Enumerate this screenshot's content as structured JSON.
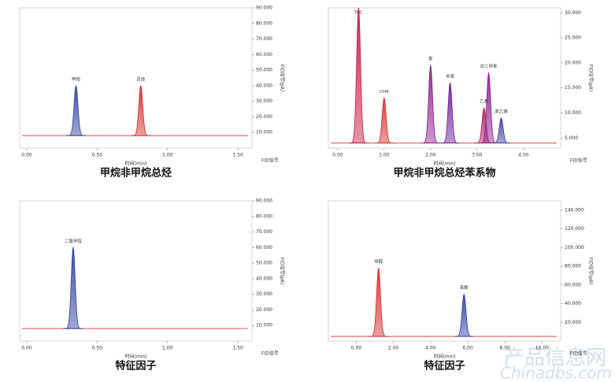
{
  "chart_data": [
    {
      "type": "chromatogram",
      "caption": "甲烷非甲烷总烃",
      "xlabel": "时间(min)",
      "ylabel": "FID信号(pA)",
      "legend": "FID信号",
      "xlim": [
        -0.05,
        1.6
      ],
      "xticks": [
        {
          "value": 0,
          "label": "0.00"
        },
        {
          "value": 0.5,
          "label": "0.50"
        },
        {
          "value": 1,
          "label": "1.00"
        },
        {
          "value": 1.5,
          "label": "1.50"
        }
      ],
      "ylim": [
        0,
        90
      ],
      "yticks": [
        {
          "value": 10,
          "label": "10.000"
        },
        {
          "value": 20,
          "label": "20.000"
        },
        {
          "value": 30,
          "label": "30.000"
        },
        {
          "value": 40,
          "label": "40.000"
        },
        {
          "value": 50,
          "label": "50.000"
        },
        {
          "value": 60,
          "label": "60.000"
        },
        {
          "value": 70,
          "label": "70.000"
        },
        {
          "value": 80,
          "label": "80.000"
        },
        {
          "value": 90,
          "label": "90.000"
        }
      ],
      "baseline": 8,
      "line_color": "#e0503c",
      "peaks": {
        "labels": [
          "甲烷",
          "总烃"
        ],
        "x": [
          0.35,
          0.81
        ],
        "values": [
          40,
          40
        ],
        "colors": [
          "#2a3d9e",
          "#d42a2a"
        ]
      }
    },
    {
      "type": "chromatogram",
      "caption": "甲烷非甲烷总烃苯系物",
      "xlabel": "时间(min)",
      "ylabel": "FID信号(pA)",
      "legend": "FID信号",
      "xlim": [
        -0.2,
        4.8
      ],
      "xticks": [
        {
          "value": 0,
          "label": "0.00"
        },
        {
          "value": 1,
          "label": "1.00"
        },
        {
          "value": 2,
          "label": "2.00"
        },
        {
          "value": 3,
          "label": "3.00"
        },
        {
          "value": 4,
          "label": "4.00"
        }
      ],
      "ylim": [
        3,
        31
      ],
      "yticks": [
        {
          "value": 5,
          "label": "5.000"
        },
        {
          "value": 10,
          "label": "10.000"
        },
        {
          "value": 15,
          "label": "15.000"
        },
        {
          "value": 20,
          "label": "20.000"
        },
        {
          "value": 25,
          "label": "25.000"
        },
        {
          "value": 30,
          "label": "30.000"
        }
      ],
      "baseline": 4,
      "line_color": "#e0503c",
      "peaks": {
        "labels": [
          "THC",
          "CH4",
          "苯",
          "甲苯",
          "乙苯",
          "对二甲苯",
          "苯乙烯"
        ],
        "x": [
          0.45,
          1.0,
          2.0,
          2.42,
          3.15,
          3.25,
          3.52
        ],
        "values": [
          31,
          13,
          19.5,
          16,
          11,
          18,
          9
        ],
        "colors": [
          "#c8143c",
          "#d42a2a",
          "#8a1a8a",
          "#6a1a9a",
          "#b0185a",
          "#8a1a8a",
          "#3a3aa0"
        ]
      }
    },
    {
      "type": "chromatogram",
      "caption": "特征因子",
      "xlabel": "时间(min)",
      "ylabel": "FID信号(pA)",
      "legend": "FID信号",
      "xlim": [
        -0.05,
        1.6
      ],
      "xticks": [
        {
          "value": 0,
          "label": "0.00"
        },
        {
          "value": 0.5,
          "label": "0.50"
        },
        {
          "value": 1,
          "label": "1.00"
        },
        {
          "value": 1.5,
          "label": "1.50"
        }
      ],
      "ylim": [
        0,
        90
      ],
      "yticks": [
        {
          "value": 10,
          "label": "10.000"
        },
        {
          "value": 20,
          "label": "20.000"
        },
        {
          "value": 30,
          "label": "30.000"
        },
        {
          "value": 40,
          "label": "40.000"
        },
        {
          "value": 50,
          "label": "50.000"
        },
        {
          "value": 60,
          "label": "60.000"
        },
        {
          "value": 70,
          "label": "70.000"
        },
        {
          "value": 80,
          "label": "80.000"
        },
        {
          "value": 90,
          "label": "90.000"
        }
      ],
      "baseline": 8,
      "line_color": "#e0503c",
      "peaks": {
        "labels": [
          "二氯甲烷"
        ],
        "x": [
          0.33
        ],
        "values": [
          60
        ],
        "colors": [
          "#2a3d9e"
        ]
      }
    },
    {
      "type": "chromatogram",
      "caption": "特征因子",
      "xlabel": "时间(min)",
      "ylabel": "FID信号(pA)",
      "legend": "FID信号",
      "xlim": [
        -1.5,
        11
      ],
      "xticks": [
        {
          "value": 0,
          "label": "0.00"
        },
        {
          "value": 2,
          "label": "2.00"
        },
        {
          "value": 4,
          "label": "4.00"
        },
        {
          "value": 6,
          "label": "6.00"
        },
        {
          "value": 8,
          "label": "8.00"
        },
        {
          "value": 10,
          "label": "10.00"
        }
      ],
      "ylim": [
        0,
        150
      ],
      "yticks": [
        {
          "value": 20,
          "label": "20.000"
        },
        {
          "value": 40,
          "label": "40.000"
        },
        {
          "value": 60,
          "label": "60.000"
        },
        {
          "value": 80,
          "label": "80.000"
        },
        {
          "value": 100,
          "label": "100.000"
        },
        {
          "value": 120,
          "label": "120.000"
        },
        {
          "value": 140,
          "label": "140.000"
        }
      ],
      "baseline": 5,
      "line_color": "#e0503c",
      "peaks": {
        "labels": [
          "甲醇",
          "苯酚"
        ],
        "x": [
          1.2,
          5.8
        ],
        "values": [
          78,
          50
        ],
        "colors": [
          "#d42a2a",
          "#2a3d9e"
        ]
      }
    }
  ],
  "watermark": {
    "title": "产品信息网",
    "site": "Chinadbs.com"
  }
}
